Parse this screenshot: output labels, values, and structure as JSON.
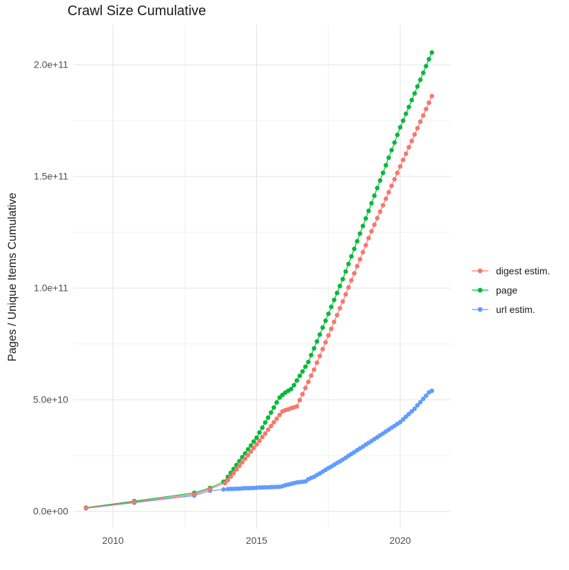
{
  "chart_data": {
    "type": "scatter",
    "title": "Crawl Size Cumulative",
    "xlabel": "",
    "ylabel": "Pages / Unique Items Cumulative",
    "value_unit_note": "values stored in billions (1e9)",
    "x_range_years": [
      2008.6,
      2021.8
    ],
    "y_range": [
      0,
      218
    ],
    "grid": {
      "x_major": [
        2010,
        2015,
        2020
      ],
      "x_minor": [
        2012.5,
        2017.5
      ],
      "y_major": [
        0,
        50,
        100,
        150,
        200
      ],
      "y_minor": [
        25,
        75,
        125,
        175
      ]
    },
    "xticks": [
      {
        "label": "2010",
        "year": 2010
      },
      {
        "label": "2015",
        "year": 2015
      },
      {
        "label": "2020",
        "year": 2020
      }
    ],
    "yticks": [
      {
        "label": "0.0e+00",
        "value": 0
      },
      {
        "label": "5.0e+10",
        "value": 50
      },
      {
        "label": "1.0e+11",
        "value": 100
      },
      {
        "label": "1.5e+11",
        "value": 150
      },
      {
        "label": "2.0e+11",
        "value": 200
      }
    ],
    "colors": {
      "background": "#ffffff",
      "grid_major": "#e3e3e3",
      "grid_minor": "#efefef",
      "tick_label": "#4d4d4d",
      "text": "#1a1a1a"
    },
    "legend_position": "right",
    "series": [
      {
        "name": "digest estim.",
        "color": "#F8766D",
        "points": [
          [
            2009.06,
            1.5
          ],
          [
            2010.74,
            4.2
          ],
          [
            2012.83,
            7.7
          ],
          [
            2013.38,
            10.0
          ],
          [
            2013.9,
            12.7
          ],
          [
            2014.0,
            14.0
          ],
          [
            2014.1,
            15.6
          ],
          [
            2014.2,
            17.2
          ],
          [
            2014.3,
            18.8
          ],
          [
            2014.4,
            20.4
          ],
          [
            2014.5,
            22.0
          ],
          [
            2014.6,
            23.6
          ],
          [
            2014.7,
            25.2
          ],
          [
            2014.8,
            26.8
          ],
          [
            2014.9,
            28.4
          ],
          [
            2015.0,
            30.0
          ],
          [
            2015.1,
            31.6
          ],
          [
            2015.2,
            33.3
          ],
          [
            2015.3,
            34.9
          ],
          [
            2015.4,
            36.6
          ],
          [
            2015.5,
            38.2
          ],
          [
            2015.6,
            39.9
          ],
          [
            2015.7,
            41.5
          ],
          [
            2015.8,
            43.2
          ],
          [
            2015.9,
            44.8
          ],
          [
            2016.0,
            45.3
          ],
          [
            2016.1,
            45.7
          ],
          [
            2016.2,
            46.2
          ],
          [
            2016.3,
            46.6
          ],
          [
            2016.4,
            47.0
          ],
          [
            2016.5,
            49.8
          ],
          [
            2016.6,
            52.5
          ],
          [
            2016.7,
            55.3
          ],
          [
            2016.8,
            58.0
          ],
          [
            2016.9,
            60.8
          ],
          [
            2017.0,
            63.5
          ],
          [
            2017.1,
            66.6
          ],
          [
            2017.2,
            69.6
          ],
          [
            2017.3,
            72.7
          ],
          [
            2017.4,
            75.7
          ],
          [
            2017.5,
            78.8
          ],
          [
            2017.6,
            81.8
          ],
          [
            2017.7,
            84.9
          ],
          [
            2017.8,
            87.9
          ],
          [
            2017.9,
            91.0
          ],
          [
            2018.0,
            94.0
          ],
          [
            2018.1,
            97.2
          ],
          [
            2018.2,
            100.3
          ],
          [
            2018.3,
            103.5
          ],
          [
            2018.4,
            106.6
          ],
          [
            2018.5,
            109.8
          ],
          [
            2018.6,
            112.9
          ],
          [
            2018.7,
            116.1
          ],
          [
            2018.8,
            119.2
          ],
          [
            2018.9,
            122.4
          ],
          [
            2019.0,
            125.5
          ],
          [
            2019.1,
            128.4
          ],
          [
            2019.2,
            131.3
          ],
          [
            2019.3,
            134.2
          ],
          [
            2019.4,
            137.1
          ],
          [
            2019.5,
            140.0
          ],
          [
            2019.6,
            142.9
          ],
          [
            2019.7,
            145.8
          ],
          [
            2019.8,
            148.7
          ],
          [
            2019.9,
            151.6
          ],
          [
            2020.0,
            154.5
          ],
          [
            2020.1,
            157.4
          ],
          [
            2020.2,
            160.2
          ],
          [
            2020.3,
            163.1
          ],
          [
            2020.4,
            165.9
          ],
          [
            2020.5,
            168.8
          ],
          [
            2020.6,
            171.6
          ],
          [
            2020.7,
            174.5
          ],
          [
            2020.8,
            177.3
          ],
          [
            2020.9,
            180.2
          ],
          [
            2021.0,
            183.0
          ],
          [
            2021.1,
            186.0
          ]
        ]
      },
      {
        "name": "page",
        "color": "#00BA38",
        "points": [
          [
            2009.06,
            1.7
          ],
          [
            2010.74,
            4.6
          ],
          [
            2012.83,
            8.3
          ],
          [
            2013.38,
            10.5
          ],
          [
            2013.85,
            13.3
          ],
          [
            2014.0,
            15.5
          ],
          [
            2014.1,
            17.3
          ],
          [
            2014.2,
            19.0
          ],
          [
            2014.3,
            20.8
          ],
          [
            2014.4,
            22.5
          ],
          [
            2014.5,
            24.3
          ],
          [
            2014.6,
            26.0
          ],
          [
            2014.7,
            27.8
          ],
          [
            2014.8,
            29.5
          ],
          [
            2014.9,
            31.3
          ],
          [
            2015.0,
            33.0
          ],
          [
            2015.1,
            35.3
          ],
          [
            2015.2,
            37.5
          ],
          [
            2015.3,
            39.8
          ],
          [
            2015.4,
            42.0
          ],
          [
            2015.5,
            44.3
          ],
          [
            2015.6,
            46.5
          ],
          [
            2015.7,
            48.8
          ],
          [
            2015.8,
            51.0
          ],
          [
            2015.9,
            52.2
          ],
          [
            2016.0,
            53.2
          ],
          [
            2016.1,
            54.0
          ],
          [
            2016.2,
            54.8
          ],
          [
            2016.3,
            56.5
          ],
          [
            2016.4,
            58.6
          ],
          [
            2016.5,
            60.7
          ],
          [
            2016.6,
            62.7
          ],
          [
            2016.7,
            64.8
          ],
          [
            2016.8,
            66.9
          ],
          [
            2016.9,
            70.0
          ],
          [
            2017.0,
            73.0
          ],
          [
            2017.1,
            76.1
          ],
          [
            2017.2,
            79.2
          ],
          [
            2017.3,
            82.3
          ],
          [
            2017.4,
            85.4
          ],
          [
            2017.5,
            88.5
          ],
          [
            2017.6,
            91.6
          ],
          [
            2017.7,
            94.7
          ],
          [
            2017.8,
            97.8
          ],
          [
            2017.9,
            100.9
          ],
          [
            2018.0,
            104.0
          ],
          [
            2018.1,
            107.4
          ],
          [
            2018.2,
            110.8
          ],
          [
            2018.3,
            114.2
          ],
          [
            2018.4,
            117.6
          ],
          [
            2018.5,
            121.0
          ],
          [
            2018.6,
            124.4
          ],
          [
            2018.7,
            127.8
          ],
          [
            2018.8,
            131.2
          ],
          [
            2018.9,
            134.6
          ],
          [
            2019.0,
            138.0
          ],
          [
            2019.1,
            141.4
          ],
          [
            2019.2,
            144.8
          ],
          [
            2019.3,
            148.2
          ],
          [
            2019.4,
            151.6
          ],
          [
            2019.5,
            155.0
          ],
          [
            2019.6,
            158.4
          ],
          [
            2019.7,
            161.8
          ],
          [
            2019.8,
            165.2
          ],
          [
            2019.9,
            168.6
          ],
          [
            2020.0,
            172.0
          ],
          [
            2020.1,
            175.0
          ],
          [
            2020.2,
            178.1
          ],
          [
            2020.3,
            181.1
          ],
          [
            2020.4,
            184.2
          ],
          [
            2020.5,
            187.2
          ],
          [
            2020.6,
            190.3
          ],
          [
            2020.7,
            193.3
          ],
          [
            2020.8,
            196.4
          ],
          [
            2020.9,
            199.4
          ],
          [
            2021.0,
            202.5
          ],
          [
            2021.1,
            205.5
          ]
        ]
      },
      {
        "name": "url estim.",
        "color": "#619CFF",
        "points": [
          [
            2009.06,
            1.4
          ],
          [
            2010.74,
            3.9
          ],
          [
            2012.83,
            7.1
          ],
          [
            2013.38,
            9.3
          ],
          [
            2013.85,
            9.8
          ],
          [
            2014.0,
            10.0
          ],
          [
            2014.1,
            10.1
          ],
          [
            2014.2,
            10.1
          ],
          [
            2014.3,
            10.2
          ],
          [
            2014.4,
            10.2
          ],
          [
            2014.5,
            10.3
          ],
          [
            2014.6,
            10.4
          ],
          [
            2014.7,
            10.4
          ],
          [
            2014.8,
            10.5
          ],
          [
            2014.9,
            10.5
          ],
          [
            2015.0,
            10.6
          ],
          [
            2015.1,
            10.7
          ],
          [
            2015.2,
            10.7
          ],
          [
            2015.3,
            10.8
          ],
          [
            2015.4,
            10.8
          ],
          [
            2015.5,
            10.9
          ],
          [
            2015.6,
            10.9
          ],
          [
            2015.7,
            11.0
          ],
          [
            2015.8,
            11.0
          ],
          [
            2015.9,
            11.3
          ],
          [
            2016.0,
            11.7
          ],
          [
            2016.1,
            12.0
          ],
          [
            2016.2,
            12.3
          ],
          [
            2016.3,
            12.7
          ],
          [
            2016.4,
            13.0
          ],
          [
            2016.5,
            13.1
          ],
          [
            2016.6,
            13.3
          ],
          [
            2016.7,
            13.4
          ],
          [
            2016.8,
            14.4
          ],
          [
            2016.9,
            15.0
          ],
          [
            2017.0,
            15.5
          ],
          [
            2017.1,
            16.3
          ],
          [
            2017.2,
            17.0
          ],
          [
            2017.3,
            17.8
          ],
          [
            2017.4,
            18.6
          ],
          [
            2017.5,
            19.4
          ],
          [
            2017.6,
            20.1
          ],
          [
            2017.7,
            20.9
          ],
          [
            2017.8,
            21.7
          ],
          [
            2017.9,
            22.4
          ],
          [
            2018.0,
            23.2
          ],
          [
            2018.1,
            24.0
          ],
          [
            2018.2,
            24.9
          ],
          [
            2018.3,
            25.7
          ],
          [
            2018.4,
            26.5
          ],
          [
            2018.5,
            27.4
          ],
          [
            2018.6,
            28.2
          ],
          [
            2018.7,
            29.0
          ],
          [
            2018.8,
            29.9
          ],
          [
            2018.9,
            30.7
          ],
          [
            2019.0,
            31.5
          ],
          [
            2019.1,
            32.4
          ],
          [
            2019.2,
            33.2
          ],
          [
            2019.3,
            34.1
          ],
          [
            2019.4,
            34.9
          ],
          [
            2019.5,
            35.8
          ],
          [
            2019.6,
            36.6
          ],
          [
            2019.7,
            37.5
          ],
          [
            2019.8,
            38.3
          ],
          [
            2019.9,
            39.2
          ],
          [
            2020.0,
            40.0
          ],
          [
            2020.1,
            41.2
          ],
          [
            2020.2,
            42.4
          ],
          [
            2020.3,
            43.6
          ],
          [
            2020.4,
            44.8
          ],
          [
            2020.5,
            46.0
          ],
          [
            2020.6,
            47.5
          ],
          [
            2020.7,
            48.9
          ],
          [
            2020.8,
            50.4
          ],
          [
            2020.9,
            51.8
          ],
          [
            2021.0,
            53.3
          ],
          [
            2021.1,
            54.0
          ]
        ]
      }
    ]
  },
  "legend": {
    "items": [
      {
        "label": "digest estim."
      },
      {
        "label": "page"
      },
      {
        "label": "url estim."
      }
    ]
  }
}
